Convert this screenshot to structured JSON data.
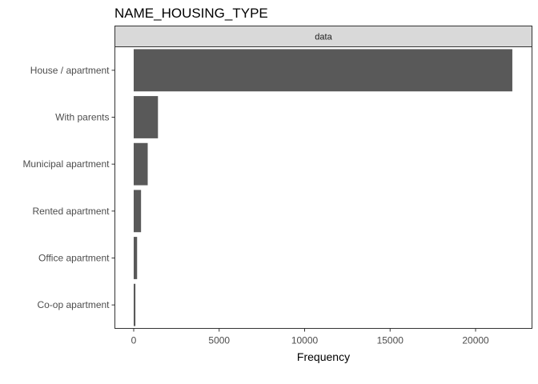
{
  "chart_data": {
    "type": "bar",
    "orientation": "horizontal",
    "title": "NAME_HOUSING_TYPE",
    "facet_label": "data",
    "xlabel": "Frequency",
    "ylabel": "",
    "categories": [
      "House / apartment",
      "With parents",
      "Municipal apartment",
      "Rented apartment",
      "Office apartment",
      "Co-op apartment"
    ],
    "values": [
      22150,
      1420,
      820,
      430,
      200,
      100
    ],
    "xlim": [
      -1100,
      23300
    ],
    "xticks": [
      0,
      5000,
      10000,
      15000,
      20000
    ],
    "xtick_labels": [
      "0",
      "5000",
      "10000",
      "15000",
      "20000"
    ],
    "grid": false,
    "legend": "none",
    "bar_color": "#595959",
    "strip_color": "#d9d9d9"
  }
}
